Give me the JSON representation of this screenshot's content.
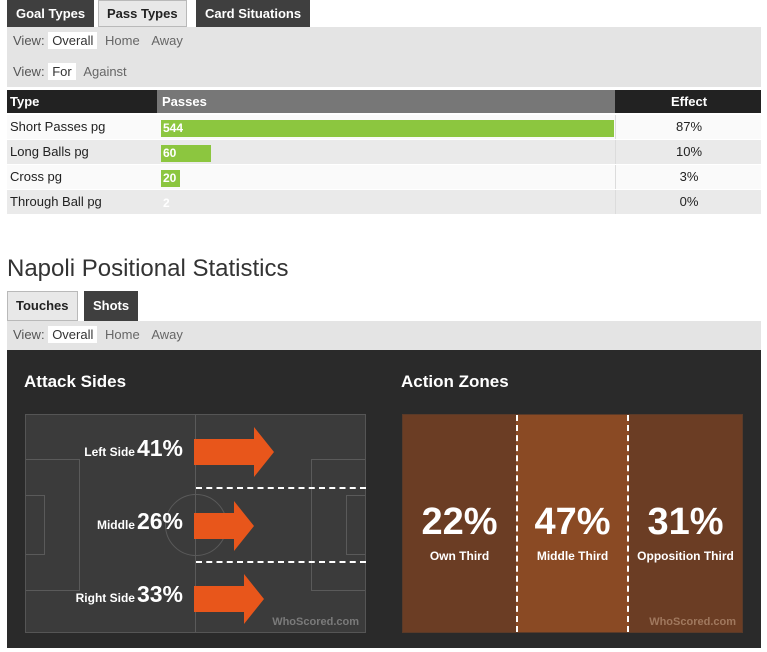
{
  "top_tabs": [
    "Goal Types",
    "Pass Types",
    "Card Situations"
  ],
  "filters": {
    "view_label": "View:",
    "view_options": [
      "Overall",
      "Home",
      "Away"
    ],
    "view2_options": [
      "For",
      "Against"
    ]
  },
  "pass_table": {
    "headers": {
      "type": "Type",
      "passes": "Passes",
      "effect": "Effect"
    },
    "rows": [
      {
        "type": "Short Passes pg",
        "passes": "544",
        "pct": 87,
        "effect": "87%"
      },
      {
        "type": "Long Balls pg",
        "passes": "60",
        "pct": 10,
        "effect": "10%"
      },
      {
        "type": "Cross pg",
        "passes": "20",
        "pct": 3,
        "effect": "3%"
      },
      {
        "type": "Through Ball pg",
        "passes": "2",
        "pct": 0,
        "effect": "0%"
      }
    ]
  },
  "section_title": "Napoli Positional Statistics",
  "pos_tabs": [
    "Touches",
    "Shots"
  ],
  "attack_sides": {
    "title": "Attack Sides",
    "sides": [
      {
        "name": "Left Side",
        "value": "41%"
      },
      {
        "name": "Middle",
        "value": "26%"
      },
      {
        "name": "Right Side",
        "value": "33%"
      }
    ]
  },
  "action_zones": {
    "title": "Action Zones",
    "zones": [
      {
        "name": "Own Third",
        "value": "22%"
      },
      {
        "name": "Middle Third",
        "value": "47%"
      },
      {
        "name": "Opposition Third",
        "value": "31%"
      }
    ]
  },
  "watermark": "WhoScored.com",
  "colors": {
    "bar": "#8cc63f",
    "arrow": "#e8561b",
    "zone_mid": "#8a4a24",
    "zone_side": "#6b3d24"
  }
}
